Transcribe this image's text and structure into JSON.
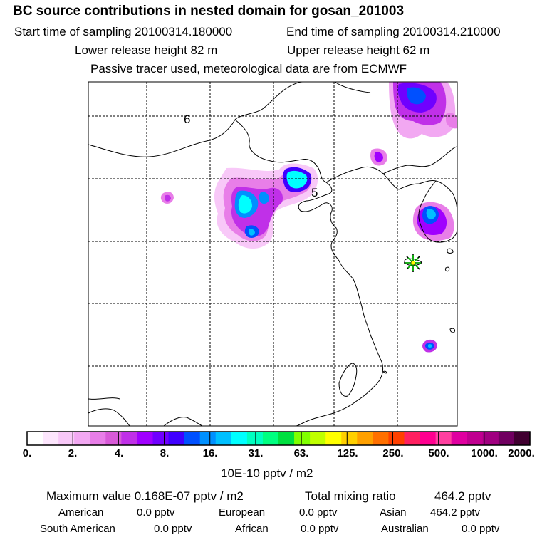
{
  "header": {
    "title": "BC  source contributions in nested domain for gosan_201003",
    "start_label": "Start time of sampling 20100314.180000",
    "end_label": "End time of sampling 20100314.210000",
    "lower_label": "Lower release height   82 m",
    "upper_label": "Upper release height   62 m",
    "tracer_note": "Passive tracer used, meteorological data are from ECMWF"
  },
  "map": {
    "day_labels": [
      "6",
      "5"
    ],
    "receptor": "gosan"
  },
  "colorbar": {
    "colors": [
      "#ffffff",
      "#fde6fd",
      "#f8c8f8",
      "#f2a8f2",
      "#e87ee8",
      "#d85ad8",
      "#c030e8",
      "#a000ff",
      "#7000ff",
      "#4000ff",
      "#0050ff",
      "#0090ff",
      "#00c0ff",
      "#00ffff",
      "#00ffc0",
      "#00ff80",
      "#00e040",
      "#80ff00",
      "#c0ff00",
      "#ffff00",
      "#ffd000",
      "#ffa000",
      "#ff7000",
      "#ff4000",
      "#ff2060",
      "#ff0090",
      "#ff40a0",
      "#e000a0",
      "#c00090",
      "#a00080",
      "#700060",
      "#400030"
    ],
    "tick_labels": [
      "0.",
      "2.",
      "4.",
      "8.",
      "16.",
      "31.",
      "63.",
      "125.",
      "250.",
      "500.",
      "1000.",
      "2000."
    ],
    "unit_label": "10E-10 pptv / m2"
  },
  "summary": {
    "max_label": "Maximum value  0.168E-07 pptv / m2",
    "total_label": "Total mixing ratio",
    "total_value": "464.2 pptv",
    "regions": [
      {
        "name": "American",
        "value": "0.0 pptv"
      },
      {
        "name": "European",
        "value": "0.0 pptv"
      },
      {
        "name": "Asian",
        "value": "464.2 pptv"
      },
      {
        "name": "South American",
        "value": "0.0 pptv"
      },
      {
        "name": "African",
        "value": "0.0 pptv"
      },
      {
        "name": "Australian",
        "value": "0.0 pptv"
      }
    ]
  }
}
